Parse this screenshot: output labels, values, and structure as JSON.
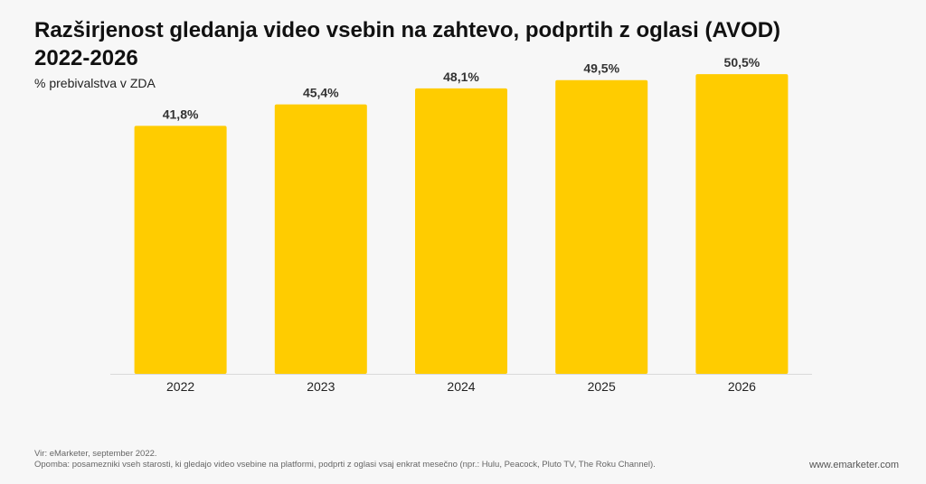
{
  "header": {
    "title_line1": "Razširjenost gledanja video vsebin na zahtevo, podprtih z oglasi (AVOD)",
    "title_line2": "2022-2026",
    "subtitle": "% prebivalstva v ZDA"
  },
  "footer": {
    "source": "Vir: eMarketer, september 2022.",
    "note": "Opomba: posamezniki vseh starosti, ki gledajo video vsebine na platformi, podprti z oglasi vsaj enkrat mesečno (npr.: Hulu, Peacock, Pluto TV, The Roku Channel).",
    "brand": "www.emarketer.com"
  },
  "colors": {
    "bar": "#ffcc00",
    "label": "#333333",
    "axis": "#d9d9d9"
  },
  "chart_data": {
    "type": "bar",
    "title": "Razširjenost gledanja video vsebin na zahtevo, podprtih z oglasi (AVOD) 2022-2026",
    "ylabel": "% prebivalstva v ZDA",
    "xlabel": "",
    "categories": [
      "2022",
      "2023",
      "2024",
      "2025",
      "2026"
    ],
    "values": [
      41.8,
      45.4,
      48.1,
      49.5,
      50.5
    ],
    "value_labels": [
      "41,8%",
      "45,4%",
      "48,1%",
      "49,5%",
      "50,5%"
    ],
    "ylim": [
      0,
      63
    ],
    "grid": false
  }
}
